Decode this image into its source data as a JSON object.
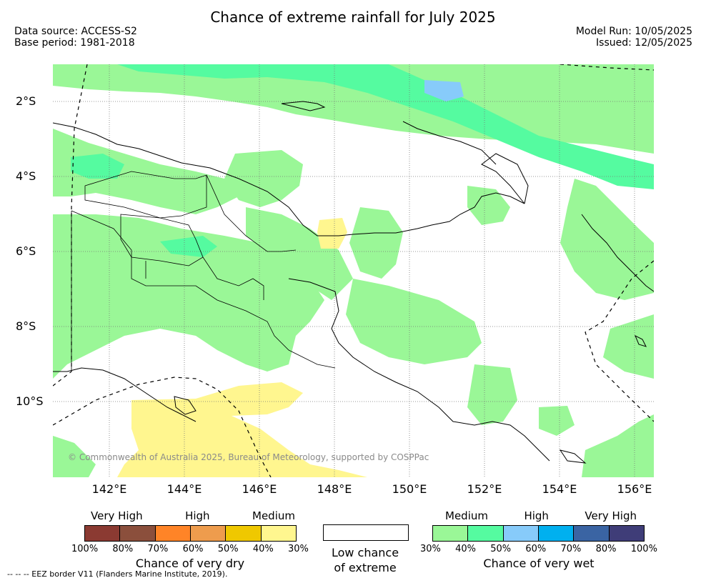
{
  "title": "Chance of extreme rainfall for July 2025",
  "meta": {
    "data_source": "Data source: ACCESS-S2",
    "base_period": "Base period: 1981-2018",
    "model_run": "Model Run: 10/05/2025",
    "issued": "Issued: 12/05/2025"
  },
  "map": {
    "region": "Papua New Guinea",
    "lat_labels": [
      "2°S",
      "4°S",
      "6°S",
      "8°S",
      "10°S"
    ],
    "lon_labels": [
      "142°E",
      "144°E",
      "146°E",
      "148°E",
      "150°E",
      "152°E",
      "154°E",
      "156°E"
    ],
    "colors": {
      "dry_medium": "#fff68f",
      "wet_medium": "#9af797",
      "wet_high_low": "#55fba0",
      "wet_high": "#87cbfa",
      "grid": "#777777",
      "coast": "#000000"
    }
  },
  "copyright": "© Commonwealth of Australia 2025, Bureau of Meteorology, supported by COSPPac",
  "legend_dry": {
    "categories": [
      "Very High",
      "High",
      "Medium"
    ],
    "colors": [
      "#8b3a32",
      "#8b4f3c",
      "#ff8427",
      "#ee9c4d",
      "#efc800",
      "#fff68f"
    ],
    "ticks": [
      "100%",
      "80%",
      "70%",
      "60%",
      "50%",
      "40%",
      "30%"
    ],
    "caption": "Chance of very dry"
  },
  "legend_low": {
    "line1": "Low chance",
    "line2": "of extreme"
  },
  "legend_wet": {
    "categories": [
      "Medium",
      "High",
      "Very High"
    ],
    "colors": [
      "#9af797",
      "#55fba0",
      "#87cbfa",
      "#00b0ef",
      "#3a64a3",
      "#3f3d78"
    ],
    "ticks": [
      "30%",
      "40%",
      "50%",
      "60%",
      "70%",
      "80%",
      "100%"
    ],
    "caption": "Chance of very wet"
  },
  "eez_note": "--  --  -- EEZ border V11 (Flanders Marine Institute, 2019)."
}
